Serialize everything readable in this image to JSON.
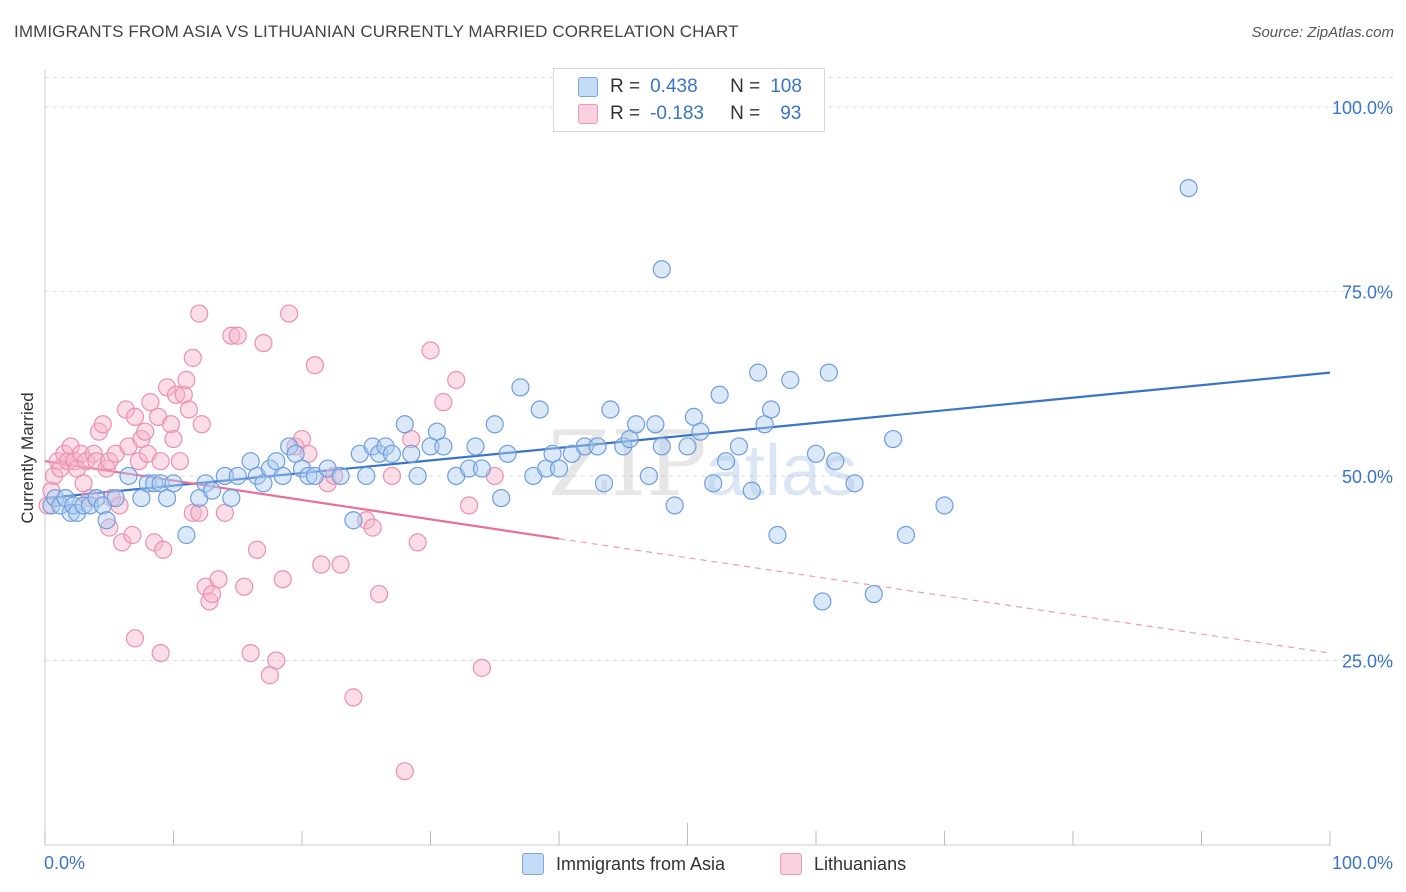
{
  "title": "IMMIGRANTS FROM ASIA VS LITHUANIAN CURRENTLY MARRIED CORRELATION CHART",
  "source": "Source: ZipAtlas.com",
  "colors": {
    "blue": "#3a74c9",
    "blue_fill": "#aecbef",
    "pink": "#e8709a",
    "pink_fill": "#f4b3c9",
    "grid": "#dddddd",
    "axis_text": "#3a74c9"
  },
  "legend": {
    "r_label": "R =",
    "n_label": "N =",
    "blue": {
      "r": "0.438",
      "n": "108"
    },
    "pink": {
      "r": "-0.183",
      "n": "93"
    }
  },
  "bottom_legend": {
    "blue": "Immigrants from Asia",
    "pink": "Lithuanians"
  },
  "watermark": {
    "zip": "ZIP",
    "atlas": "atlas"
  },
  "chart_data": {
    "type": "scatter",
    "title": "IMMIGRANTS FROM ASIA VS LITHUANIAN CURRENTLY MARRIED CORRELATION CHART",
    "xlabel": "",
    "ylabel": "Currently Married",
    "xlim": [
      0,
      100
    ],
    "ylim": [
      0,
      105
    ],
    "x_tick_labels": [
      "0.0%",
      "100.0%"
    ],
    "y_tick_labels": [
      "25.0%",
      "50.0%",
      "75.0%",
      "100.0%"
    ],
    "y_ticks": [
      25,
      50,
      75,
      100
    ],
    "grid": true,
    "legend_position": "top-center",
    "series": [
      {
        "name": "Immigrants from Asia",
        "color": "#3a74c9",
        "r": 0.438,
        "n": 108,
        "trend": {
          "x": [
            0,
            100
          ],
          "y": [
            47.0,
            64.0
          ],
          "style": "solid"
        },
        "points": [
          [
            0.5,
            46
          ],
          [
            0.8,
            47
          ],
          [
            1.2,
            46
          ],
          [
            1.6,
            47
          ],
          [
            2,
            45
          ],
          [
            2.2,
            46
          ],
          [
            2.5,
            45
          ],
          [
            3,
            46
          ],
          [
            3.5,
            46
          ],
          [
            4,
            47
          ],
          [
            4.5,
            46
          ],
          [
            4.8,
            44
          ],
          [
            5.5,
            47
          ],
          [
            6.5,
            50
          ],
          [
            7.5,
            47
          ],
          [
            8,
            49
          ],
          [
            8.5,
            49
          ],
          [
            9,
            49
          ],
          [
            9.5,
            47
          ],
          [
            10,
            49
          ],
          [
            11,
            42
          ],
          [
            12,
            47
          ],
          [
            12.5,
            49
          ],
          [
            13,
            48
          ],
          [
            14,
            50
          ],
          [
            14.5,
            47
          ],
          [
            15,
            50
          ],
          [
            16,
            52
          ],
          [
            16.5,
            50
          ],
          [
            17,
            49
          ],
          [
            17.5,
            51
          ],
          [
            18,
            52
          ],
          [
            18.5,
            50
          ],
          [
            19,
            54
          ],
          [
            19.5,
            53
          ],
          [
            20,
            51
          ],
          [
            20.5,
            50
          ],
          [
            21,
            50
          ],
          [
            22,
            51
          ],
          [
            23,
            50
          ],
          [
            24,
            44
          ],
          [
            24.5,
            53
          ],
          [
            25,
            50
          ],
          [
            25.5,
            54
          ],
          [
            26,
            53
          ],
          [
            26.5,
            54
          ],
          [
            27,
            53
          ],
          [
            28,
            57
          ],
          [
            28.5,
            53
          ],
          [
            29,
            50
          ],
          [
            30,
            54
          ],
          [
            30.5,
            56
          ],
          [
            31,
            54
          ],
          [
            32,
            50
          ],
          [
            33,
            51
          ],
          [
            33.5,
            54
          ],
          [
            34,
            51
          ],
          [
            35,
            57
          ],
          [
            35.5,
            47
          ],
          [
            36,
            53
          ],
          [
            37,
            62
          ],
          [
            38,
            50
          ],
          [
            38.5,
            59
          ],
          [
            39,
            51
          ],
          [
            39.5,
            53
          ],
          [
            40,
            51
          ],
          [
            41,
            53
          ],
          [
            42,
            54
          ],
          [
            43,
            54
          ],
          [
            43.5,
            49
          ],
          [
            44,
            59
          ],
          [
            45,
            54
          ],
          [
            45.5,
            55
          ],
          [
            46,
            57
          ],
          [
            47,
            50
          ],
          [
            47.5,
            57
          ],
          [
            48,
            54
          ],
          [
            49,
            46
          ],
          [
            50,
            54
          ],
          [
            50.5,
            58
          ],
          [
            51,
            56
          ],
          [
            52,
            49
          ],
          [
            52.5,
            61
          ],
          [
            53,
            52
          ],
          [
            54,
            54
          ],
          [
            55,
            48
          ],
          [
            55.5,
            64
          ],
          [
            56,
            57
          ],
          [
            56.5,
            59
          ],
          [
            57,
            42
          ],
          [
            58,
            63
          ],
          [
            60,
            53
          ],
          [
            60.5,
            33
          ],
          [
            61,
            64
          ],
          [
            61.5,
            52
          ],
          [
            63,
            49
          ],
          [
            66,
            55
          ],
          [
            64.5,
            34
          ],
          [
            67,
            42
          ],
          [
            70,
            46
          ],
          [
            48,
            78
          ],
          [
            89,
            89
          ]
        ]
      },
      {
        "name": "Lithuanians",
        "color": "#e8709a",
        "r": -0.183,
        "n": 93,
        "trend": {
          "x": [
            0,
            40,
            100
          ],
          "y": [
            52.0,
            41.5,
            26.0
          ],
          "style": "solid-then-dashed",
          "solid_until": 40
        },
        "points": [
          [
            0.2,
            46
          ],
          [
            0.5,
            48
          ],
          [
            0.7,
            50
          ],
          [
            1,
            52
          ],
          [
            1.2,
            51
          ],
          [
            1.5,
            53
          ],
          [
            1.8,
            52
          ],
          [
            2,
            54
          ],
          [
            2.3,
            52
          ],
          [
            2.5,
            51
          ],
          [
            2.8,
            53
          ],
          [
            3,
            49
          ],
          [
            3.2,
            52
          ],
          [
            3.5,
            47
          ],
          [
            3.8,
            53
          ],
          [
            4,
            52
          ],
          [
            4.2,
            56
          ],
          [
            4.5,
            57
          ],
          [
            4.8,
            51
          ],
          [
            5,
            52
          ],
          [
            5.2,
            47
          ],
          [
            5.5,
            53
          ],
          [
            5.8,
            46
          ],
          [
            6,
            41
          ],
          [
            6.3,
            59
          ],
          [
            6.5,
            54
          ],
          [
            6.8,
            42
          ],
          [
            7,
            58
          ],
          [
            7.3,
            52
          ],
          [
            7.5,
            55
          ],
          [
            7.8,
            56
          ],
          [
            8,
            53
          ],
          [
            8.2,
            60
          ],
          [
            8.5,
            41
          ],
          [
            8.8,
            58
          ],
          [
            9,
            52
          ],
          [
            9.2,
            40
          ],
          [
            9.5,
            62
          ],
          [
            9.8,
            57
          ],
          [
            10,
            55
          ],
          [
            10.2,
            61
          ],
          [
            10.5,
            52
          ],
          [
            10.8,
            61
          ],
          [
            11,
            63
          ],
          [
            11.2,
            59
          ],
          [
            11.5,
            66
          ],
          [
            12,
            72
          ],
          [
            12.2,
            57
          ],
          [
            12.5,
            35
          ],
          [
            12.8,
            33
          ],
          [
            13,
            34
          ],
          [
            13.5,
            36
          ],
          [
            14,
            45
          ],
          [
            14.5,
            69
          ],
          [
            15,
            69
          ],
          [
            15.5,
            35
          ],
          [
            16,
            26
          ],
          [
            16.5,
            40
          ],
          [
            17,
            68
          ],
          [
            17.5,
            23
          ],
          [
            18,
            25
          ],
          [
            18.5,
            36
          ],
          [
            19,
            72
          ],
          [
            19.5,
            54
          ],
          [
            20,
            55
          ],
          [
            20.5,
            53
          ],
          [
            21,
            65
          ],
          [
            21.5,
            38
          ],
          [
            22,
            49
          ],
          [
            22.5,
            50
          ],
          [
            23,
            38
          ],
          [
            24,
            20
          ],
          [
            25,
            44
          ],
          [
            25.5,
            43
          ],
          [
            26,
            34
          ],
          [
            27,
            50
          ],
          [
            28,
            10
          ],
          [
            28.5,
            55
          ],
          [
            29,
            41
          ],
          [
            30,
            67
          ],
          [
            31,
            60
          ],
          [
            32,
            63
          ],
          [
            33,
            46
          ],
          [
            34,
            24
          ],
          [
            35,
            50
          ],
          [
            5,
            43
          ],
          [
            7,
            28
          ],
          [
            9,
            26
          ],
          [
            11.5,
            45
          ],
          [
            12,
            45
          ]
        ]
      }
    ]
  }
}
